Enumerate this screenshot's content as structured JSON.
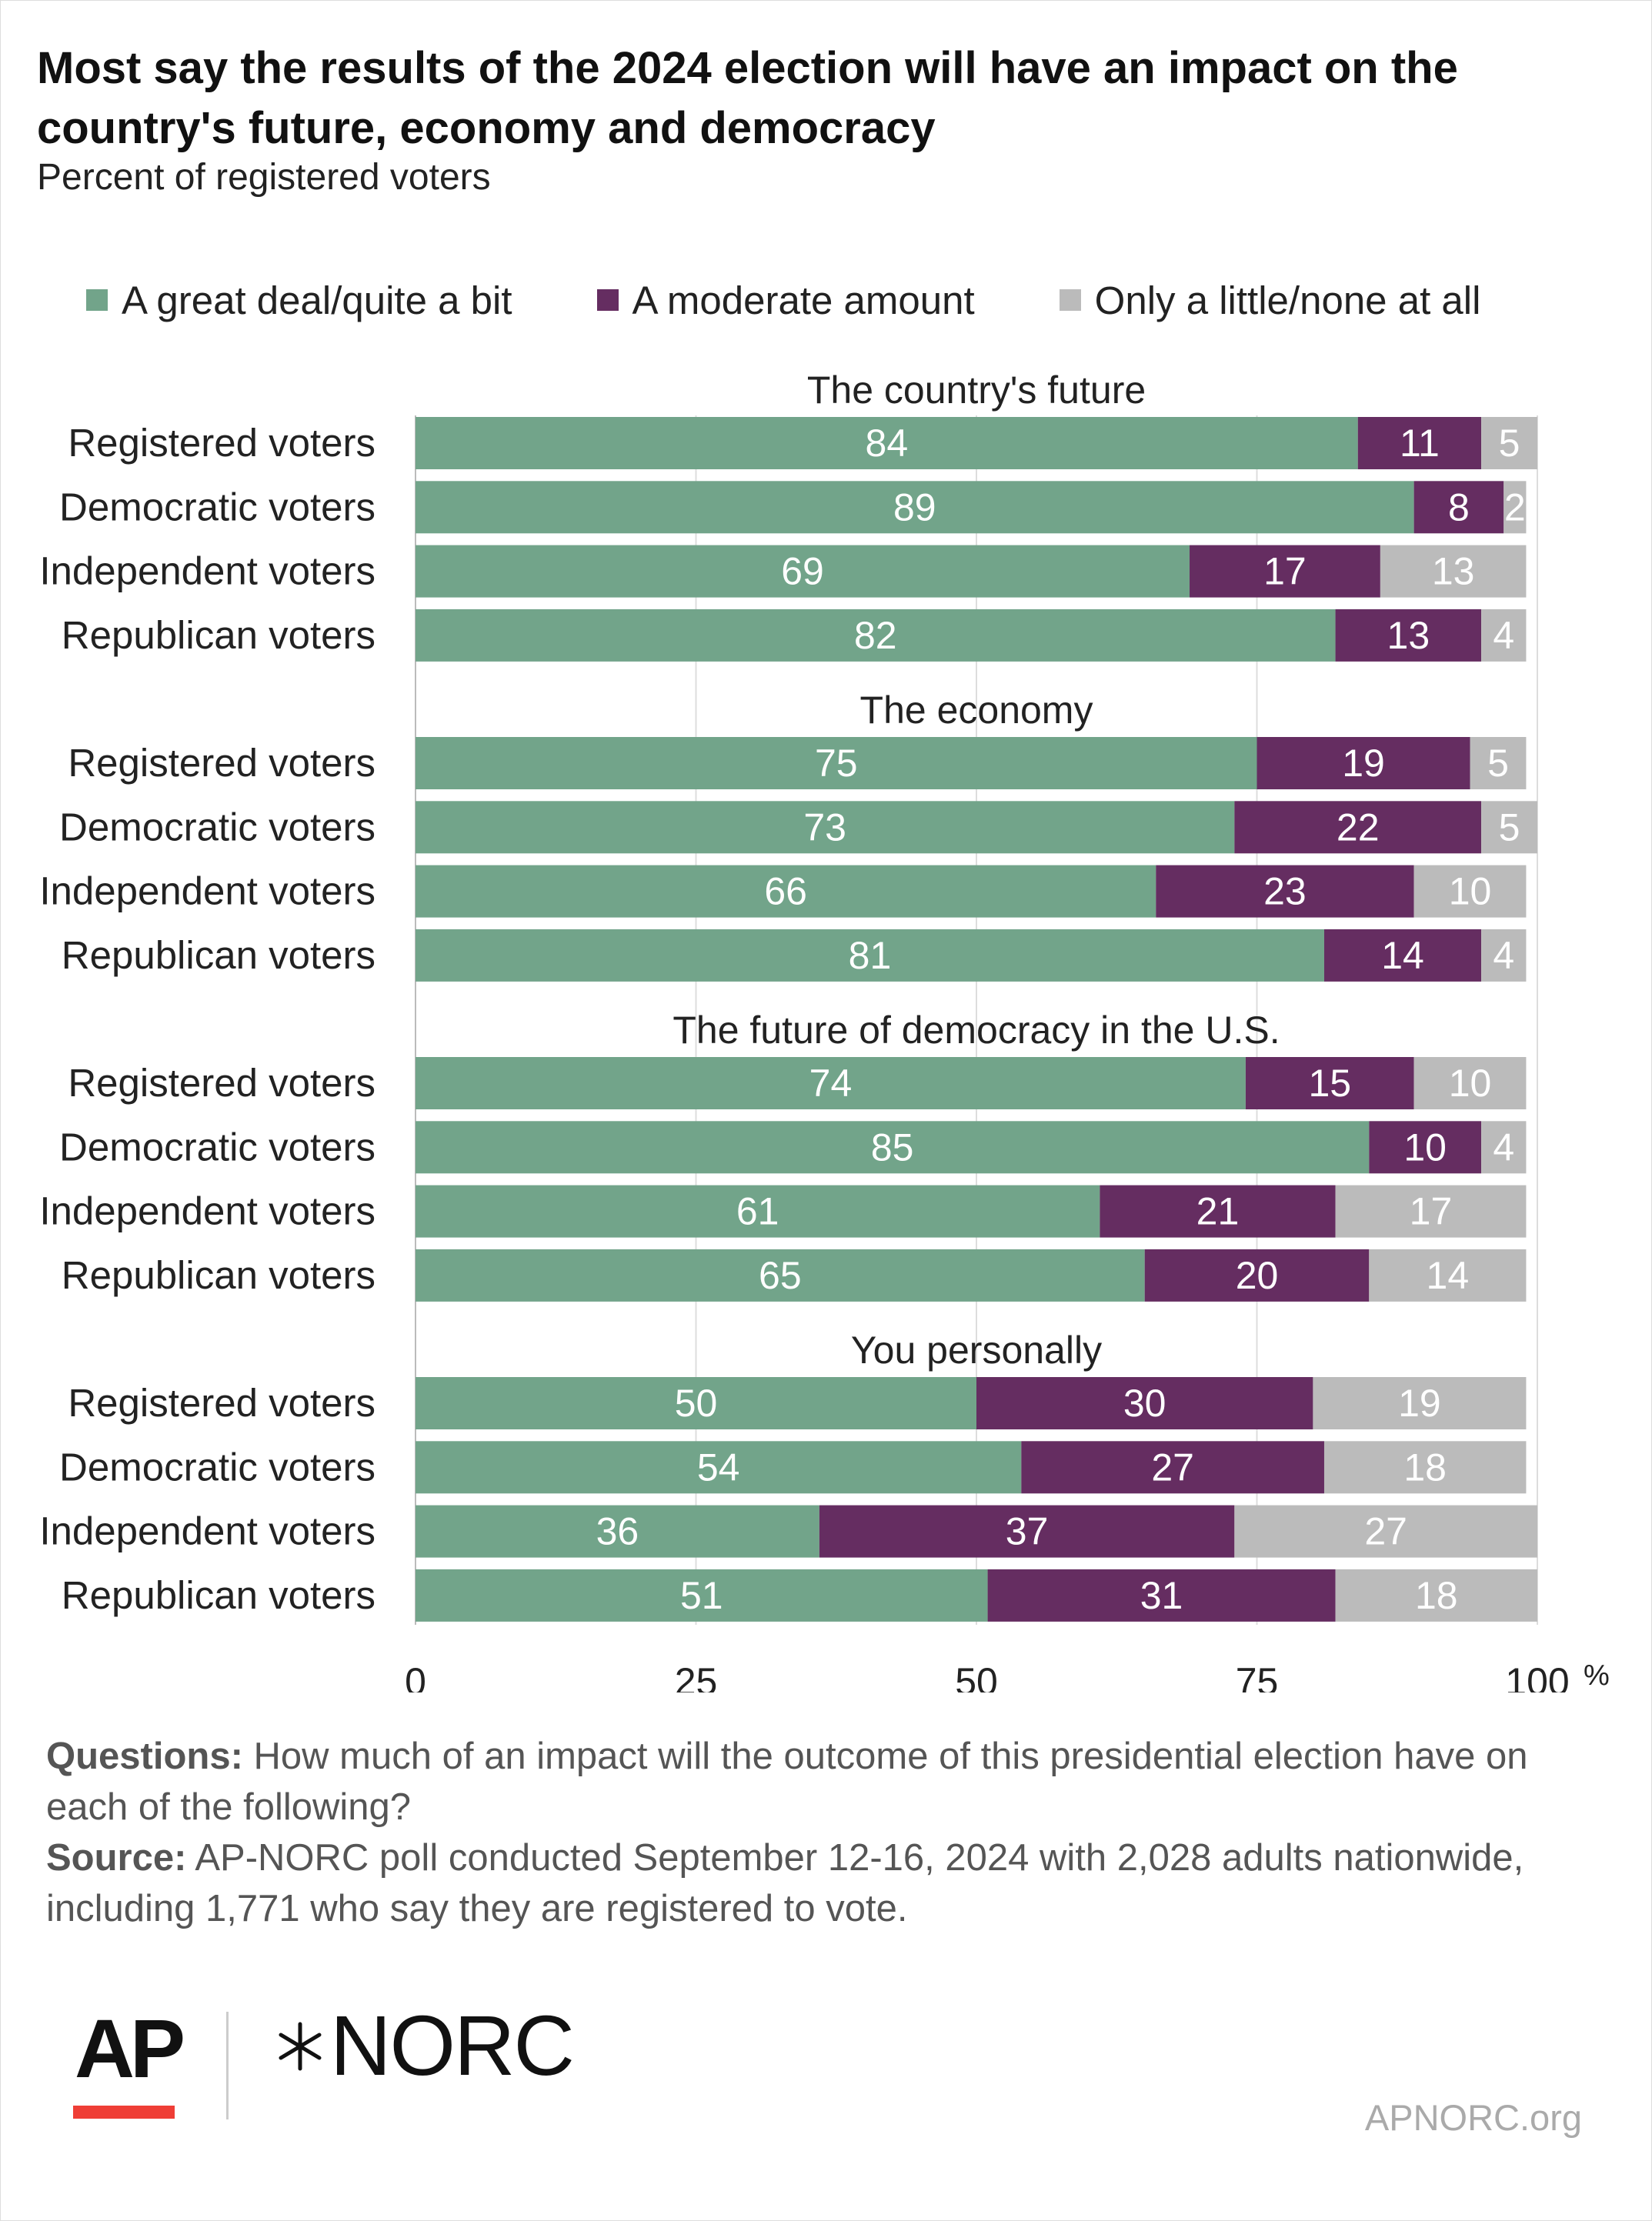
{
  "header": {
    "title": "Most say the results of the 2024 election will have an impact on the country's future, economy and democracy",
    "subtitle": "Percent of registered voters"
  },
  "colors": {
    "great": "#72a48a",
    "moderate": "#652d61",
    "little": "#bbbbbb",
    "grid": "#dddddd",
    "text": "#222222"
  },
  "chart_data": {
    "type": "bar",
    "orientation": "horizontal",
    "stacked": true,
    "xlim": [
      0,
      100
    ],
    "x_ticks": [
      "0",
      "25",
      "50",
      "75",
      "100"
    ],
    "x_unit": "%",
    "grid": true,
    "legend_position": "top",
    "series": [
      {
        "name": "A great deal/quite a bit",
        "color_key": "great"
      },
      {
        "name": "A moderate amount",
        "color_key": "moderate"
      },
      {
        "name": "Only a little/none at all",
        "color_key": "little"
      }
    ],
    "groups": [
      {
        "title": "The country's future",
        "rows": [
          {
            "label": "Registered voters",
            "values": [
              84,
              11,
              5
            ]
          },
          {
            "label": "Democratic voters",
            "values": [
              89,
              8,
              2
            ]
          },
          {
            "label": "Independent voters",
            "values": [
              69,
              17,
              13
            ]
          },
          {
            "label": "Republican voters",
            "values": [
              82,
              13,
              4
            ]
          }
        ]
      },
      {
        "title": "The economy",
        "rows": [
          {
            "label": "Registered voters",
            "values": [
              75,
              19,
              5
            ]
          },
          {
            "label": "Democratic voters",
            "values": [
              73,
              22,
              5
            ]
          },
          {
            "label": "Independent voters",
            "values": [
              66,
              23,
              10
            ]
          },
          {
            "label": "Republican voters",
            "values": [
              81,
              14,
              4
            ]
          }
        ]
      },
      {
        "title": "The future of democracy in the U.S.",
        "rows": [
          {
            "label": "Registered voters",
            "values": [
              74,
              15,
              10
            ]
          },
          {
            "label": "Democratic voters",
            "values": [
              85,
              10,
              4
            ]
          },
          {
            "label": "Independent voters",
            "values": [
              61,
              21,
              17
            ]
          },
          {
            "label": "Republican voters",
            "values": [
              65,
              20,
              14
            ]
          }
        ]
      },
      {
        "title": "You personally",
        "rows": [
          {
            "label": "Registered voters",
            "values": [
              50,
              30,
              19
            ]
          },
          {
            "label": "Democratic voters",
            "values": [
              54,
              27,
              18
            ]
          },
          {
            "label": "Independent voters",
            "values": [
              36,
              37,
              27
            ]
          },
          {
            "label": "Republican voters",
            "values": [
              51,
              31,
              18
            ]
          }
        ]
      }
    ]
  },
  "footer": {
    "questions_label": "Questions:",
    "questions_text": "How much of an impact will the outcome of this presidential election have on each of the following?",
    "source_label": "Source:",
    "source_text": "AP-NORC poll conducted September 12-16, 2024 with 2,028 adults nationwide, including 1,771 who say they are registered to vote.",
    "logo_ap": "AP",
    "logo_norc": "NORC",
    "site": "APNORC.org"
  }
}
